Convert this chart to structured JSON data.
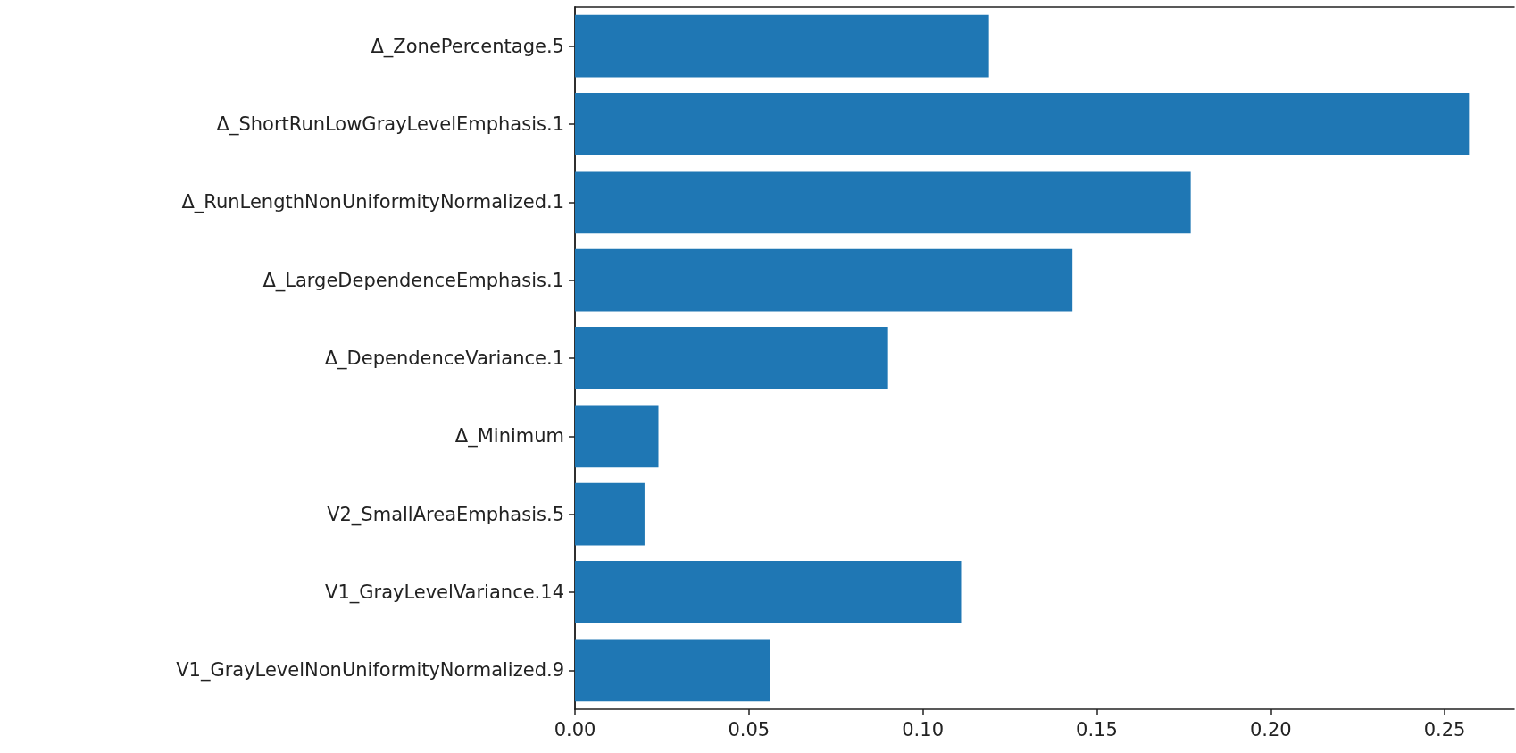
{
  "chart_data": {
    "type": "bar",
    "orientation": "horizontal",
    "categories": [
      "Δ_ZonePercentage.5",
      "Δ_ShortRunLowGrayLevelEmphasis.1",
      "Δ_RunLengthNonUniformityNormalized.1",
      "Δ_LargeDependenceEmphasis.1",
      "Δ_DependenceVariance.1",
      "Δ_Minimum",
      "V2_SmallAreaEmphasis.5",
      "V1_GrayLevelVariance.14",
      "V1_GrayLevelNonUniformityNormalized.9"
    ],
    "values": [
      0.119,
      0.257,
      0.177,
      0.143,
      0.09,
      0.024,
      0.02,
      0.111,
      0.056
    ],
    "color": "#1f77b4",
    "xlim": [
      0,
      0.27
    ],
    "xticks": [
      {
        "value": 0,
        "label": "0.00"
      },
      {
        "value": 0.05,
        "label": "0.05"
      },
      {
        "value": 0.1,
        "label": "0.10"
      },
      {
        "value": 0.15,
        "label": "0.15"
      },
      {
        "value": 0.2,
        "label": "0.20"
      },
      {
        "value": 0.25,
        "label": "0.25"
      }
    ],
    "grid": false
  }
}
